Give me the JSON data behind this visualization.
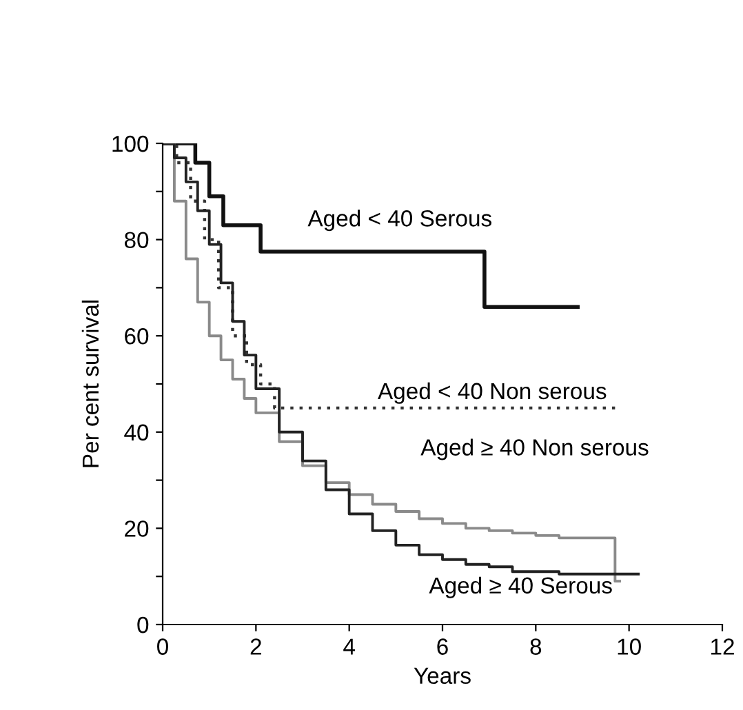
{
  "chart_data": {
    "type": "step",
    "xlabel": "Years",
    "ylabel": "Per cent survival",
    "xlim": [
      0,
      12
    ],
    "xticks": [
      0,
      2,
      4,
      6,
      8,
      10,
      12
    ],
    "ylim": [
      0,
      100
    ],
    "yticks": [
      0,
      {
        "value": 10,
        "label": null
      },
      20,
      {
        "value": 30,
        "label": null
      },
      40,
      {
        "value": 50,
        "label": null
      },
      60,
      {
        "value": 70,
        "label": null
      },
      80,
      {
        "value": 90,
        "label": null
      },
      100
    ],
    "grid": false,
    "legend": false,
    "marker": "none",
    "series": [
      {
        "color": "#111111",
        "line_style": "solid",
        "x": [
          0,
          0.7,
          1.0,
          1.3,
          2.1,
          6.9,
          8.9
        ],
        "values": [
          100,
          96,
          89,
          83,
          77.5,
          66,
          66
        ]
      },
      {
        "color": "#333333",
        "line_style": "dotted",
        "x": [
          0,
          0.3,
          0.6,
          0.9,
          1.2,
          1.5,
          1.8,
          2.1,
          2.4,
          9.7
        ],
        "values": [
          100,
          96,
          88,
          80,
          70,
          60,
          54,
          50,
          45,
          45
        ]
      },
      {
        "color": "#8a8a8a",
        "line_style": "solid",
        "x": [
          0,
          0.25,
          0.5,
          0.75,
          1,
          1.25,
          1.5,
          1.75,
          2,
          2.5,
          3,
          3.5,
          4,
          4.5,
          5,
          5.5,
          6,
          6.5,
          7,
          7.5,
          8,
          8.5,
          9,
          9.6,
          9.7,
          9.8
        ],
        "values": [
          100,
          88,
          76,
          67,
          60,
          55,
          51,
          47,
          44,
          38,
          33,
          29.5,
          27,
          25,
          23.5,
          22,
          21,
          20,
          19.5,
          19,
          18.5,
          18,
          18,
          18,
          9,
          9
        ]
      },
      {
        "color": "#222222",
        "line_style": "solid",
        "x": [
          0,
          0.25,
          0.5,
          0.75,
          1,
          1.25,
          1.5,
          1.75,
          2,
          2.5,
          3,
          3.5,
          4,
          4.5,
          5,
          5.5,
          6,
          6.5,
          7,
          7.5,
          8,
          8.5,
          9,
          9.5,
          10.2
        ],
        "values": [
          100,
          97,
          92,
          86,
          79,
          71,
          63,
          56,
          49,
          40,
          34,
          28,
          23,
          19.5,
          16.5,
          14.5,
          13.5,
          12.5,
          12,
          11,
          11,
          10.5,
          10.5,
          10.5,
          10.5
        ]
      }
    ],
    "annotations": [
      "Aged < 40 Serous",
      "Aged < 40 Non serous",
      "Aged ≥ 40 Non serous",
      "Aged ≥ 40 Serous"
    ]
  }
}
